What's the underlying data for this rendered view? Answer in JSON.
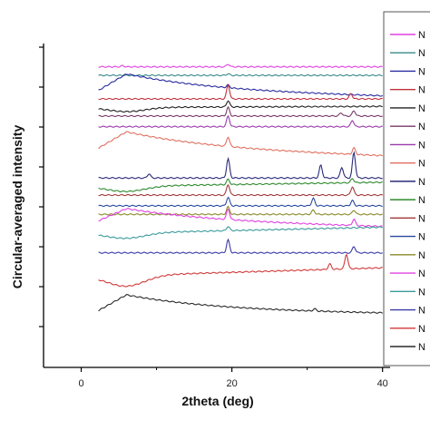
{
  "chart_data": {
    "type": "line",
    "title": "",
    "xlabel": "2theta (deg)",
    "ylabel": "Circular-averaged intensity",
    "xlim": [
      -5,
      41
    ],
    "x_ticks": [
      0,
      20,
      40
    ],
    "x_tick_labels": [
      "0",
      "20",
      "40"
    ],
    "y_tick_labels_shown": false,
    "grid": false,
    "legend": {
      "placement": "right",
      "entry_label": "N"
    },
    "series": [
      {
        "color": "#e040e0",
        "offset": 16.0,
        "shape": "flat",
        "slope": 0.0,
        "peaks": [
          [
            5.5,
            0.1
          ],
          [
            19.5,
            0.25
          ]
        ]
      },
      {
        "color": "#3a8a8a",
        "offset": 15.2,
        "shape": "flat",
        "slope": 0.0,
        "peaks": [
          [
            19.5,
            0.15
          ]
        ]
      },
      {
        "color": "#2a2aa0",
        "offset": 13.8,
        "shape": "hump",
        "slope": -0.6,
        "hump": 1.6,
        "peaks": [
          [
            19.5,
            0.25
          ]
        ]
      },
      {
        "color": "#c0303a",
        "offset": 13.0,
        "shape": "flat",
        "slope": 0.0,
        "peaks": [
          [
            19.5,
            1.3
          ],
          [
            35.8,
            0.5
          ]
        ]
      },
      {
        "color": "#222222",
        "offset": 12.2,
        "shape": "dip",
        "slope": 0.1,
        "hump": -0.4,
        "peaks": [
          [
            19.5,
            0.6
          ]
        ]
      },
      {
        "color": "#7a3a6a",
        "offset": 11.4,
        "shape": "flat",
        "slope": 0.0,
        "peaks": [
          [
            19.5,
            0.8
          ],
          [
            34.5,
            0.3
          ],
          [
            36.2,
            0.5
          ]
        ]
      },
      {
        "color": "#9a3aaa",
        "offset": 10.4,
        "shape": "flat",
        "slope": 0.0,
        "peaks": [
          [
            19.5,
            1.0
          ],
          [
            36.0,
            0.6
          ]
        ]
      },
      {
        "color": "#e07060",
        "offset": 8.4,
        "shape": "hump",
        "slope": -0.8,
        "hump": 1.6,
        "peaks": [
          [
            19.5,
            0.9
          ],
          [
            36.2,
            0.6
          ]
        ]
      },
      {
        "color": "#2a2a7a",
        "offset": 5.6,
        "shape": "flat",
        "slope": 0.0,
        "peaks": [
          [
            9.0,
            0.4
          ],
          [
            19.5,
            1.8
          ],
          [
            31.8,
            1.2
          ],
          [
            34.6,
            1.0
          ],
          [
            36.2,
            2.4
          ]
        ]
      },
      {
        "color": "#2e8a2e",
        "offset": 4.8,
        "shape": "dip",
        "slope": 0.4,
        "hump": -0.5,
        "peaks": [
          [
            19.5,
            0.5
          ],
          [
            36.0,
            0.4
          ]
        ]
      },
      {
        "color": "#a03a3a",
        "offset": 4.0,
        "shape": "flat",
        "slope": 0.0,
        "peaks": [
          [
            19.5,
            1.0
          ],
          [
            36.0,
            0.8
          ]
        ]
      },
      {
        "color": "#2a4aa0",
        "offset": 3.0,
        "shape": "flat",
        "slope": 0.0,
        "peaks": [
          [
            19.5,
            0.8
          ],
          [
            30.8,
            0.7
          ],
          [
            36.0,
            0.5
          ]
        ]
      },
      {
        "color": "#8a8a2a",
        "offset": 2.2,
        "shape": "flat",
        "slope": 0.0,
        "peaks": [
          [
            19.5,
            0.7
          ],
          [
            30.8,
            0.4
          ],
          [
            36.2,
            0.4
          ]
        ]
      },
      {
        "color": "#e040e0",
        "offset": 1.6,
        "shape": "hump",
        "slope": -0.6,
        "hump": 1.2,
        "peaks": [
          [
            19.5,
            1.0
          ],
          [
            36.2,
            0.6
          ]
        ]
      },
      {
        "color": "#3a9a9a",
        "offset": 0.4,
        "shape": "dip",
        "slope": 0.6,
        "hump": -0.5,
        "peaks": [
          [
            19.5,
            0.4
          ]
        ]
      },
      {
        "color": "#3a3aa8",
        "offset": -1.4,
        "shape": "flat",
        "slope": 0.0,
        "peaks": [
          [
            19.5,
            1.2
          ],
          [
            36.2,
            0.6
          ]
        ]
      },
      {
        "color": "#d03a3a",
        "offset": -3.6,
        "shape": "dip",
        "slope": 0.8,
        "hump": -1.0,
        "peaks": [
          [
            33.0,
            0.5
          ],
          [
            35.2,
            1.4
          ]
        ]
      },
      {
        "color": "#2a2a2a",
        "offset": -6.8,
        "shape": "hump",
        "slope": -0.3,
        "hump": 1.5,
        "peaks": [
          [
            31.0,
            0.2
          ]
        ]
      }
    ]
  }
}
